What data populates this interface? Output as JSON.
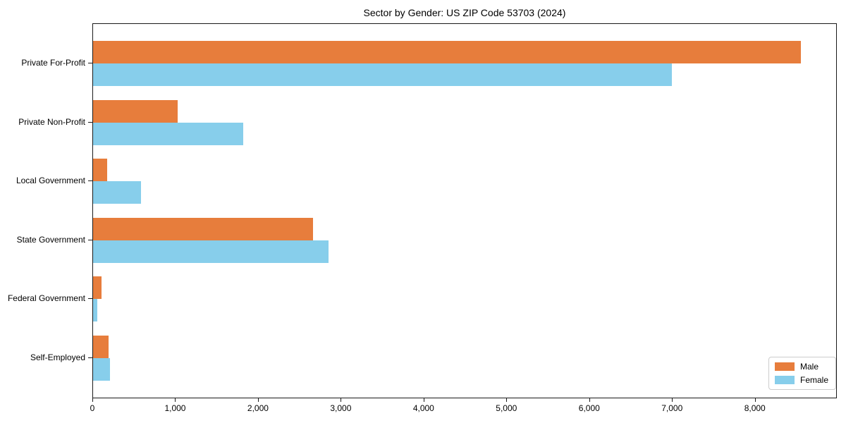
{
  "chart_data": {
    "type": "bar",
    "orientation": "horizontal",
    "title": "Sector by Gender: US ZIP Code 53703 (2024)",
    "categories": [
      "Private For-Profit",
      "Private Non-Profit",
      "Local Government",
      "State Government",
      "Federal Government",
      "Self-Employed"
    ],
    "series": [
      {
        "name": "Male",
        "color": "#e77d3c",
        "values": [
          8545,
          1020,
          170,
          2660,
          105,
          190
        ]
      },
      {
        "name": "Female",
        "color": "#87ceeb",
        "values": [
          6990,
          1815,
          580,
          2845,
          55,
          205
        ]
      }
    ],
    "xlabel": "",
    "ylabel": "",
    "xlim": [
      0,
      8990
    ],
    "xticks": [
      0,
      1000,
      2000,
      3000,
      4000,
      5000,
      6000,
      7000,
      8000
    ],
    "xtick_labels": [
      "0",
      "1,000",
      "2,000",
      "3,000",
      "4,000",
      "5,000",
      "6,000",
      "7,000",
      "8,000"
    ],
    "grid": false,
    "legend": {
      "position": "lower right"
    },
    "colors": {
      "axis": "#1a1a1a",
      "text": "#000000",
      "legend_border": "#cccccc"
    }
  }
}
